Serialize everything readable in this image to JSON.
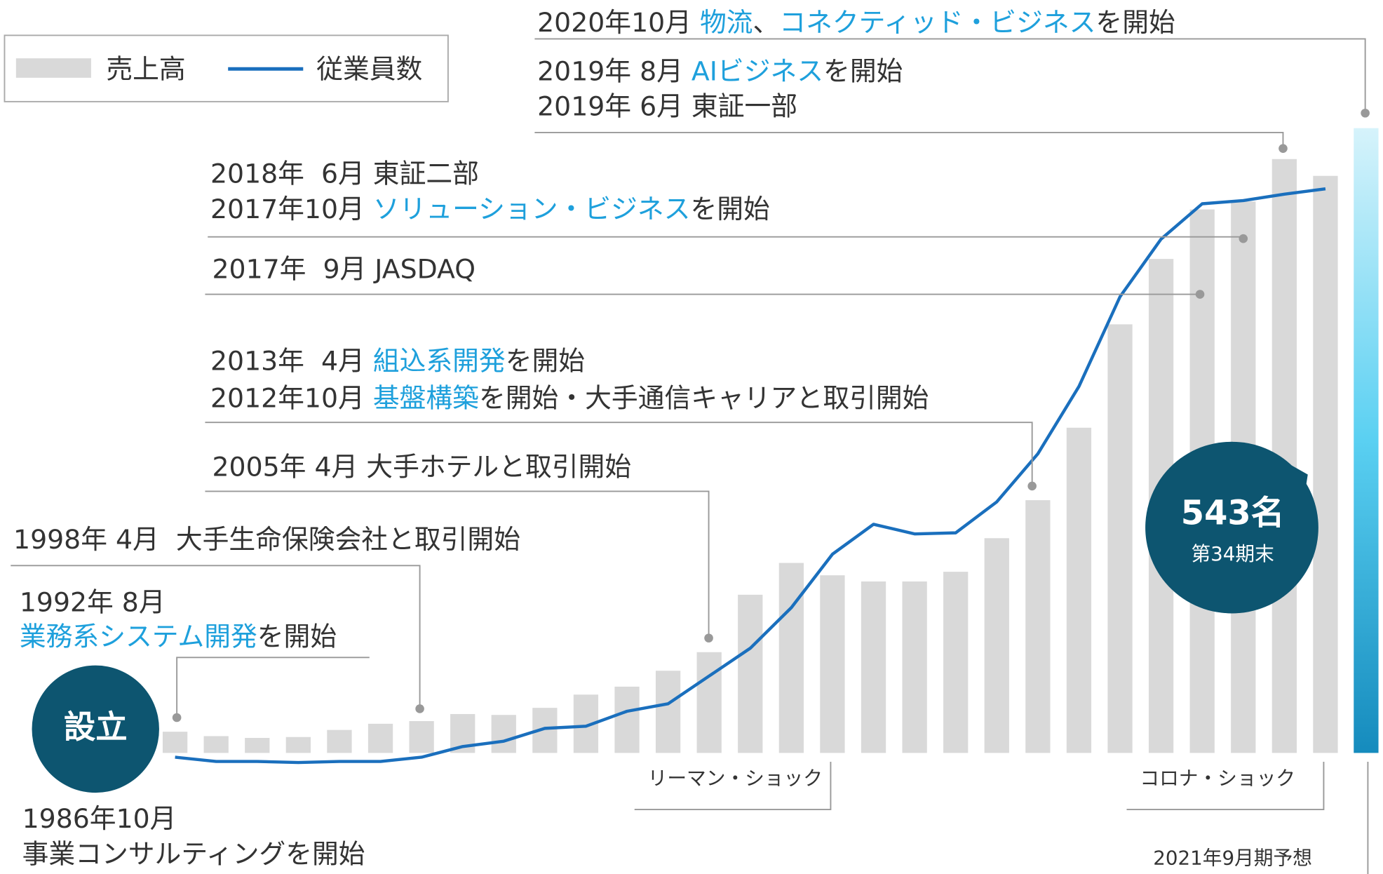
{
  "chart_data": {
    "type": "bar",
    "series": [
      {
        "name": "売上高",
        "color": "#d9d9d9",
        "values": [
          24,
          19,
          17,
          18,
          26,
          33,
          36,
          44,
          43,
          51,
          66,
          75,
          93,
          114,
          179,
          215,
          201,
          194,
          194,
          205,
          243,
          286,
          368,
          485,
          559,
          615,
          624,
          672,
          653
        ]
      },
      {
        "name": "従業員数",
        "type": "line",
        "axis": "y2",
        "color": "#1a6fbd",
        "values": [
          11,
          7,
          7,
          6,
          7,
          7,
          11,
          21,
          26,
          38,
          40,
          54,
          61,
          87,
          113,
          151,
          201,
          229,
          220,
          221,
          250,
          295,
          358,
          442,
          496,
          529,
          532,
          538,
          543
        ],
        "value_labels": [
          null,
          null,
          null,
          null,
          null,
          null,
          null,
          null,
          null,
          null,
          null,
          null,
          null,
          null,
          null,
          null,
          null,
          null,
          null,
          null,
          null,
          null,
          null,
          null,
          null,
          null,
          null,
          null,
          "543名"
        ]
      }
    ],
    "ylim": [
      0,
      700
    ],
    "y2lim": [
      15,
      594
    ],
    "legend": "top-left",
    "value_note": "第34期末",
    "start_label": "設立",
    "periods": [
      "リーマン・ショック",
      "コロナ・ショック"
    ],
    "forecast_label": "2021年9月期予想",
    "events": [
      [
        [
          {
            "text": "2020年10月 "
          },
          {
            "text": "物流",
            "highlight": true
          },
          {
            "text": "、"
          },
          {
            "text": "コネクティッド・ビジネス",
            "highlight": true
          },
          {
            "text": "を開始"
          }
        ]
      ],
      [
        [
          {
            "text": "2019年 8月 "
          },
          {
            "text": "AIビジネス",
            "highlight": true
          },
          {
            "text": "を開始"
          }
        ],
        [
          {
            "text": "2019年 6月 東証一部"
          }
        ]
      ],
      [
        [
          {
            "text": "2018年  6月 東証二部"
          }
        ],
        [
          {
            "text": "2017年10月 "
          },
          {
            "text": "ソリューション・ビジネス",
            "highlight": true
          },
          {
            "text": "を開始"
          }
        ]
      ],
      [
        [
          {
            "text": "2017年  9月 JASDAQ"
          }
        ]
      ],
      [
        [
          {
            "text": "2013年  4月 "
          },
          {
            "text": "組込系開発",
            "highlight": true
          },
          {
            "text": "を開始"
          }
        ],
        [
          {
            "text": "2012年10月 "
          },
          {
            "text": "基盤構築",
            "highlight": true
          },
          {
            "text": "を開始・大手通信キャリアと取引開始"
          }
        ]
      ],
      [
        [
          {
            "text": "2005年 4月 大手ホテルと取引開始"
          }
        ]
      ],
      [
        [
          {
            "text": "1998年 4月  大手生命保険会社と取引開始"
          }
        ]
      ],
      [
        [
          {
            "text": "1992年 8月"
          }
        ],
        [
          {
            "text": "業務系システム開発",
            "highlight": true
          },
          {
            "text": "を開始"
          }
        ]
      ],
      [
        [
          {
            "text": "1986年10月"
          }
        ],
        [
          {
            "text": "事業コンサルティングを開始"
          }
        ]
      ]
    ]
  }
}
